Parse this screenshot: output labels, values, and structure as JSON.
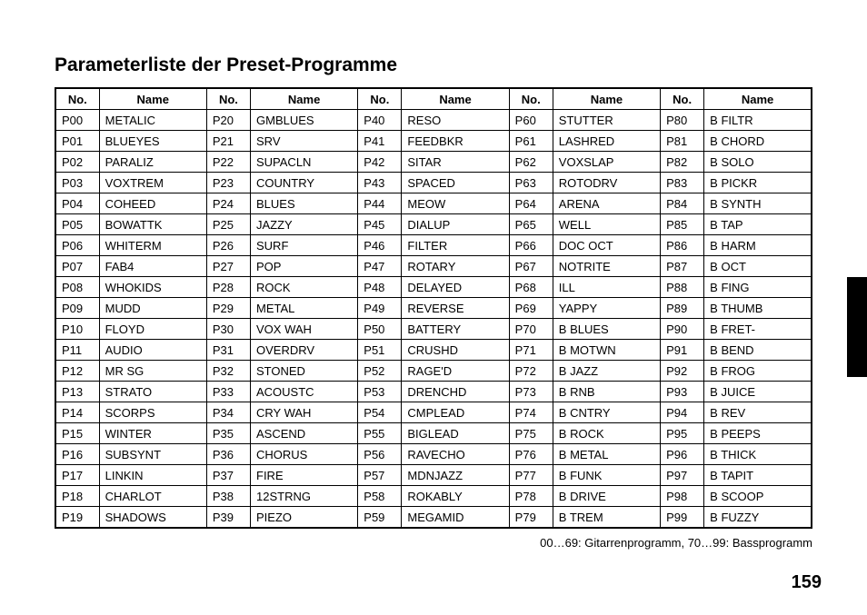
{
  "title": "Parameterliste der Preset-Programme",
  "headers": {
    "no": "No.",
    "name": "Name"
  },
  "columns": [
    [
      {
        "no": "P00",
        "name": "METALIC"
      },
      {
        "no": "P01",
        "name": "BLUEYES"
      },
      {
        "no": "P02",
        "name": "PARALIZ"
      },
      {
        "no": "P03",
        "name": "VOXTREM"
      },
      {
        "no": "P04",
        "name": "COHEED"
      },
      {
        "no": "P05",
        "name": "BOWATTK"
      },
      {
        "no": "P06",
        "name": "WHITERM"
      },
      {
        "no": "P07",
        "name": "FAB4"
      },
      {
        "no": "P08",
        "name": "WHOKIDS"
      },
      {
        "no": "P09",
        "name": "MUDD"
      },
      {
        "no": "P10",
        "name": "FLOYD"
      },
      {
        "no": "P11",
        "name": "AUDIO"
      },
      {
        "no": "P12",
        "name": "MR SG"
      },
      {
        "no": "P13",
        "name": "STRATO"
      },
      {
        "no": "P14",
        "name": "SCORPS"
      },
      {
        "no": "P15",
        "name": "WINTER"
      },
      {
        "no": "P16",
        "name": "SUBSYNT"
      },
      {
        "no": "P17",
        "name": "LINKIN"
      },
      {
        "no": "P18",
        "name": "CHARLOT"
      },
      {
        "no": "P19",
        "name": "SHADOWS"
      }
    ],
    [
      {
        "no": "P20",
        "name": "GMBLUES"
      },
      {
        "no": "P21",
        "name": "SRV"
      },
      {
        "no": "P22",
        "name": "SUPACLN"
      },
      {
        "no": "P23",
        "name": "COUNTRY"
      },
      {
        "no": "P24",
        "name": "BLUES"
      },
      {
        "no": "P25",
        "name": "JAZZY"
      },
      {
        "no": "P26",
        "name": "SURF"
      },
      {
        "no": "P27",
        "name": "POP"
      },
      {
        "no": "P28",
        "name": "ROCK"
      },
      {
        "no": "P29",
        "name": "METAL"
      },
      {
        "no": "P30",
        "name": "VOX WAH"
      },
      {
        "no": "P31",
        "name": "OVERDRV"
      },
      {
        "no": "P32",
        "name": "STONED"
      },
      {
        "no": "P33",
        "name": "ACOUSTC"
      },
      {
        "no": "P34",
        "name": "CRY WAH"
      },
      {
        "no": "P35",
        "name": "ASCEND"
      },
      {
        "no": "P36",
        "name": "CHORUS"
      },
      {
        "no": "P37",
        "name": "FIRE"
      },
      {
        "no": "P38",
        "name": "12STRNG"
      },
      {
        "no": "P39",
        "name": "PIEZO"
      }
    ],
    [
      {
        "no": "P40",
        "name": "RESO"
      },
      {
        "no": "P41",
        "name": "FEEDBKR"
      },
      {
        "no": "P42",
        "name": "SITAR"
      },
      {
        "no": "P43",
        "name": "SPACED"
      },
      {
        "no": "P44",
        "name": "MEOW"
      },
      {
        "no": "P45",
        "name": "DIALUP"
      },
      {
        "no": "P46",
        "name": "FILTER"
      },
      {
        "no": "P47",
        "name": "ROTARY"
      },
      {
        "no": "P48",
        "name": "DELAYED"
      },
      {
        "no": "P49",
        "name": "REVERSE"
      },
      {
        "no": "P50",
        "name": "BATTERY"
      },
      {
        "no": "P51",
        "name": "CRUSHD"
      },
      {
        "no": "P52",
        "name": "RAGE'D"
      },
      {
        "no": "P53",
        "name": "DRENCHD"
      },
      {
        "no": "P54",
        "name": "CMPLEAD"
      },
      {
        "no": "P55",
        "name": "BIGLEAD"
      },
      {
        "no": "P56",
        "name": "RAVECHO"
      },
      {
        "no": "P57",
        "name": "MDNJAZZ"
      },
      {
        "no": "P58",
        "name": "ROKABLY"
      },
      {
        "no": "P59",
        "name": "MEGAMID"
      }
    ],
    [
      {
        "no": "P60",
        "name": "STUTTER"
      },
      {
        "no": "P61",
        "name": "LASHRED"
      },
      {
        "no": "P62",
        "name": "VOXSLAP"
      },
      {
        "no": "P63",
        "name": "ROTODRV"
      },
      {
        "no": "P64",
        "name": "ARENA"
      },
      {
        "no": "P65",
        "name": "WELL"
      },
      {
        "no": "P66",
        "name": "DOC OCT"
      },
      {
        "no": "P67",
        "name": "NOTRITE"
      },
      {
        "no": "P68",
        "name": "ILL"
      },
      {
        "no": "P69",
        "name": "YAPPY"
      },
      {
        "no": "P70",
        "name": "B BLUES"
      },
      {
        "no": "P71",
        "name": "B MOTWN"
      },
      {
        "no": "P72",
        "name": "B JAZZ"
      },
      {
        "no": "P73",
        "name": "B RNB"
      },
      {
        "no": "P74",
        "name": "B CNTRY"
      },
      {
        "no": "P75",
        "name": "B ROCK"
      },
      {
        "no": "P76",
        "name": "B METAL"
      },
      {
        "no": "P77",
        "name": "B FUNK"
      },
      {
        "no": "P78",
        "name": "B DRIVE"
      },
      {
        "no": "P79",
        "name": "B TREM"
      }
    ],
    [
      {
        "no": "P80",
        "name": "B FILTR"
      },
      {
        "no": "P81",
        "name": "B CHORD"
      },
      {
        "no": "P82",
        "name": "B SOLO"
      },
      {
        "no": "P83",
        "name": "B PICKR"
      },
      {
        "no": "P84",
        "name": "B SYNTH"
      },
      {
        "no": "P85",
        "name": "B TAP"
      },
      {
        "no": "P86",
        "name": "B HARM"
      },
      {
        "no": "P87",
        "name": "B OCT"
      },
      {
        "no": "P88",
        "name": "B FING"
      },
      {
        "no": "P89",
        "name": "B THUMB"
      },
      {
        "no": "P90",
        "name": "B FRET-"
      },
      {
        "no": "P91",
        "name": "B BEND"
      },
      {
        "no": "P92",
        "name": "B FROG"
      },
      {
        "no": "P93",
        "name": "B JUICE"
      },
      {
        "no": "P94",
        "name": "B REV"
      },
      {
        "no": "P95",
        "name": "B PEEPS"
      },
      {
        "no": "P96",
        "name": "B THICK"
      },
      {
        "no": "P97",
        "name": "B TAPIT"
      },
      {
        "no": "P98",
        "name": "B SCOOP"
      },
      {
        "no": "P99",
        "name": "B FUZZY"
      }
    ]
  ],
  "footnote": "00…69: Gitarrenprogramm, 70…99: Bassprogramm",
  "page_number": "159"
}
